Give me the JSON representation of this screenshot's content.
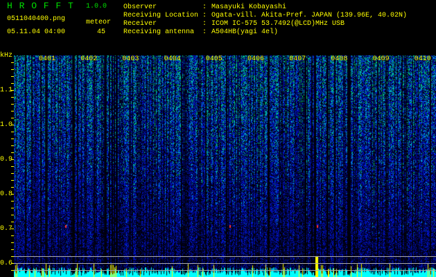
{
  "header": {
    "app_name": "H R O F F T",
    "version": "1.0.0",
    "filename": "0511040400.png",
    "datetime": "05.11.04 04:00",
    "meteor_label": "meteor",
    "meteor_count": "45"
  },
  "info": [
    {
      "label": "Observer",
      "value": "Masayuki Kobayashi"
    },
    {
      "label": "Receiving Location",
      "value": "Ogata-vill. Akita-Pref. JAPAN (139.96E, 40.02N)"
    },
    {
      "label": "Receiver",
      "value": "ICOM IC-575 53.7492(@LCD)MHz USB"
    },
    {
      "label": "Receiving antenna",
      "value": "A504HB(yagi 4el)"
    }
  ],
  "spectrogram": {
    "y_unit": "kHz",
    "y_ticks": [
      "1.1",
      "1.0",
      "0.9",
      "0.8",
      "0.7",
      "0.6"
    ],
    "x_ticks": [
      "0401",
      "0402",
      "0403",
      "0404",
      "0405",
      "0406",
      "0407",
      "0408",
      "0409",
      "0410"
    ],
    "colors": {
      "text": "#ffff00",
      "histogram": "#00ffff",
      "noise": "#1020c0"
    }
  }
}
